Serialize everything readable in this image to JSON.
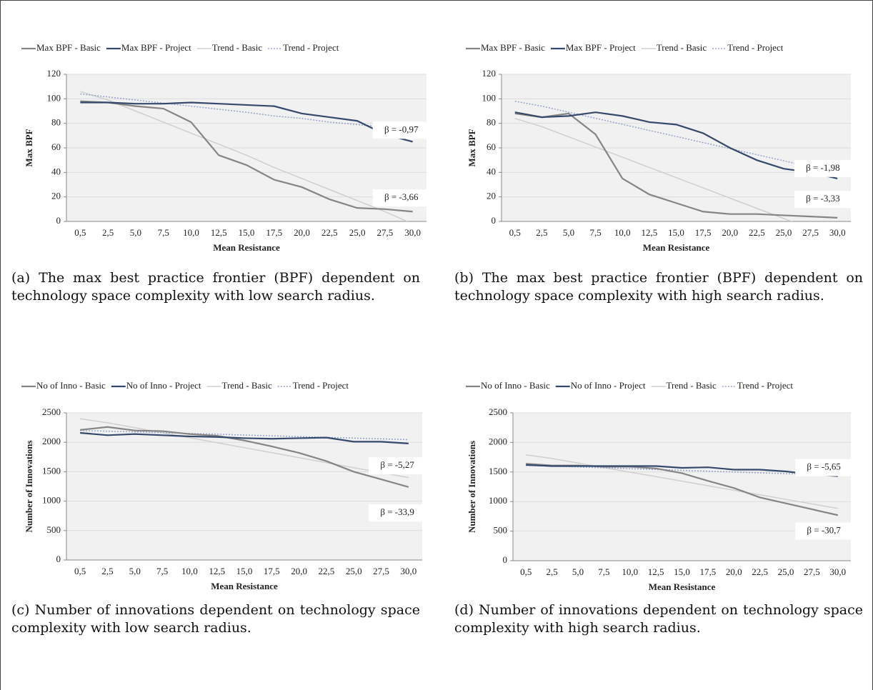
{
  "chart_data": [
    {
      "type": "line",
      "y_label": "Max BPF",
      "x_label": "Mean Resistance",
      "caption": "(a) The max best practice frontier (BPF) dependent on technology space complexity with low search radius.",
      "categories": [
        "0,5",
        "2,5",
        "5,0",
        "7,5",
        "10,0",
        "12,5",
        "15,0",
        "17,5",
        "20,0",
        "22,5",
        "25,0",
        "27,5",
        "30,0"
      ],
      "ylim": [
        0,
        120
      ],
      "yticks": [
        0,
        20,
        40,
        60,
        80,
        100,
        120
      ],
      "grid": true,
      "annotations": [
        "β = -0,97",
        "β = -3,66"
      ],
      "series": [
        {
          "name": "Max BPF - Basic",
          "color": "#858585",
          "style": "solid",
          "values": [
            98,
            97,
            94,
            92,
            81,
            54,
            46,
            34,
            28,
            18,
            11,
            10,
            8
          ]
        },
        {
          "name": "Max BPF - Project",
          "color": "#34496b",
          "style": "solid",
          "values": [
            97,
            97,
            96,
            96,
            97,
            96,
            95,
            94,
            88,
            85,
            82,
            71,
            65
          ]
        },
        {
          "name": "Trend - Basic",
          "color": "#cfcfcf",
          "style": "solid",
          "values": [
            106,
            99,
            90,
            81,
            72,
            63,
            54,
            44,
            35,
            26,
            17,
            8,
            -2
          ]
        },
        {
          "name": "Trend - Project",
          "color": "#96a3cc",
          "style": "dotted",
          "values": [
            104,
            101.5,
            99,
            96.5,
            94,
            91.5,
            89,
            86,
            84,
            81,
            79,
            77,
            75
          ]
        }
      ]
    },
    {
      "type": "line",
      "y_label": "Max BPF",
      "x_label": "Mean Resistance",
      "caption": "(b) The max best practice frontier (BPF) dependent on technology space complexity with high search radius.",
      "categories": [
        "0,5",
        "2,5",
        "5,0",
        "7,5",
        "10,0",
        "12,5",
        "15,0",
        "17,5",
        "20,0",
        "22,5",
        "25,0",
        "27,5",
        "30,0"
      ],
      "ylim": [
        0,
        120
      ],
      "yticks": [
        0,
        20,
        40,
        60,
        80,
        100,
        120
      ],
      "grid": true,
      "annotations": [
        "β = -1,98",
        "β = -3,33"
      ],
      "series": [
        {
          "name": "Max BPF - Basic",
          "color": "#858585",
          "style": "solid",
          "values": [
            88,
            85,
            88,
            71,
            35,
            22,
            15,
            8,
            6,
            6,
            5,
            4,
            3
          ]
        },
        {
          "name": "Max BPF - Project",
          "color": "#34496b",
          "style": "solid",
          "values": [
            89,
            85,
            86,
            89,
            86,
            81,
            79,
            72,
            60,
            50,
            43,
            40,
            35
          ]
        },
        {
          "name": "Trend - Basic",
          "color": "#cfcfcf",
          "style": "solid",
          "values": [
            84,
            77.3,
            69,
            60.7,
            52.4,
            44,
            35.7,
            27.4,
            19,
            10.7,
            2.4,
            -5.9,
            -14
          ]
        },
        {
          "name": "Trend - Project",
          "color": "#96a3cc",
          "style": "dotted",
          "values": [
            98,
            94,
            89.1,
            84.1,
            79.2,
            74.2,
            69.3,
            64.3,
            59.4,
            54.4,
            49.5,
            44.5,
            39.6
          ]
        }
      ]
    },
    {
      "type": "line",
      "y_label": "Number of Innovations",
      "x_label": "Mean Resistance",
      "caption": "(c) Number of innovations dependent on technology space complexity with low search radius.",
      "categories": [
        "0,5",
        "2,5",
        "5,0",
        "7,5",
        "10,0",
        "12,5",
        "15,0",
        "17,5",
        "20,0",
        "22,5",
        "25,0",
        "27,5",
        "30,0"
      ],
      "ylim": [
        0,
        2500
      ],
      "yticks": [
        0,
        500,
        1000,
        1500,
        2000,
        2500
      ],
      "grid": true,
      "annotations": [
        "β = -5,27",
        "β = -33,9"
      ],
      "series": [
        {
          "name": "No of Inno - Basic",
          "color": "#858585",
          "style": "solid",
          "values": [
            2210,
            2260,
            2200,
            2190,
            2140,
            2110,
            2030,
            1930,
            1820,
            1680,
            1500,
            1370,
            1240
          ]
        },
        {
          "name": "No of Inno - Project",
          "color": "#34496b",
          "style": "solid",
          "values": [
            2160,
            2120,
            2140,
            2120,
            2100,
            2090,
            2070,
            2060,
            2070,
            2080,
            2010,
            2010,
            1980
          ]
        },
        {
          "name": "Trend - Basic",
          "color": "#cfcfcf",
          "style": "solid",
          "values": [
            2400,
            2332,
            2248,
            2163,
            2078,
            1993,
            1908,
            1824,
            1739,
            1654,
            1569,
            1485,
            1400
          ]
        },
        {
          "name": "Trend - Project",
          "color": "#96a3cc",
          "style": "dotted",
          "values": [
            2200,
            2189,
            2176,
            2163,
            2150,
            2137,
            2123,
            2110,
            2097,
            2084,
            2071,
            2058,
            2045
          ]
        }
      ]
    },
    {
      "type": "line",
      "y_label": "Number of Innovations",
      "x_label": "Mean Resistance",
      "caption": "(d) Number of innovations dependent on technology space complexity with high search radius.",
      "categories": [
        "0,5",
        "2,5",
        "5,0",
        "7,5",
        "10,0",
        "12,5",
        "15,0",
        "17,5",
        "20,0",
        "22,5",
        "25,0",
        "27,5",
        "30,0"
      ],
      "ylim": [
        0,
        2500
      ],
      "yticks": [
        0,
        500,
        1000,
        1500,
        2000,
        2500
      ],
      "grid": true,
      "annotations": [
        "β = -5,65",
        "β = -30,7"
      ],
      "series": [
        {
          "name": "No of Inno - Basic",
          "color": "#858585",
          "style": "solid",
          "values": [
            1640,
            1610,
            1610,
            1590,
            1590,
            1560,
            1480,
            1350,
            1230,
            1070,
            970,
            870,
            770
          ]
        },
        {
          "name": "No of Inno - Project",
          "color": "#34496b",
          "style": "solid",
          "values": [
            1620,
            1600,
            1600,
            1600,
            1600,
            1600,
            1570,
            1580,
            1540,
            1540,
            1510,
            1460,
            1430
          ]
        },
        {
          "name": "Trend - Basic",
          "color": "#cfcfcf",
          "style": "solid",
          "values": [
            1790,
            1729,
            1652,
            1575,
            1498,
            1422,
            1345,
            1268,
            1191,
            1114,
            1038,
            961,
            884
          ]
        },
        {
          "name": "Trend - Project",
          "color": "#96a3cc",
          "style": "dotted",
          "values": [
            1610,
            1599,
            1585,
            1571,
            1557,
            1542,
            1528,
            1514,
            1500,
            1486,
            1472,
            1458,
            1444
          ]
        }
      ]
    }
  ]
}
